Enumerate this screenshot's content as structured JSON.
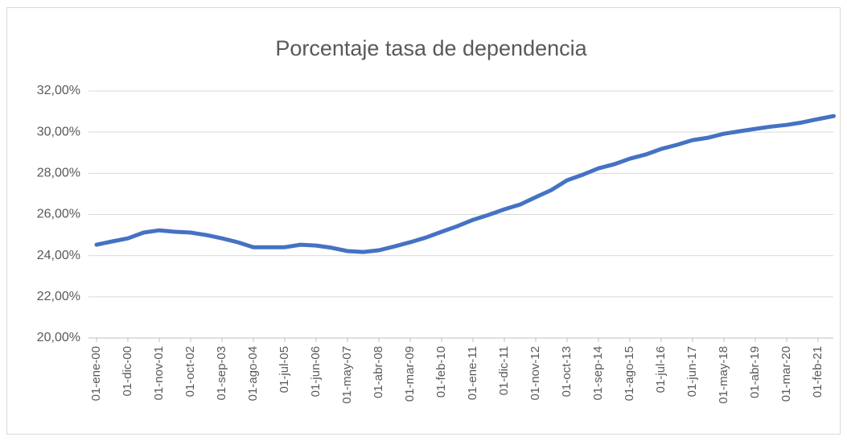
{
  "chart_data": {
    "type": "line",
    "title": "Porcentaje tasa de dependencia",
    "categories": [
      "01-ene-00",
      null,
      "01-dic-00",
      null,
      "01-nov-01",
      null,
      "01-oct-02",
      null,
      "01-sep-03",
      null,
      "01-ago-04",
      null,
      "01-jul-05",
      null,
      "01-jun-06",
      null,
      "01-may-07",
      null,
      "01-abr-08",
      null,
      "01-mar-09",
      null,
      "01-feb-10",
      null,
      "01-ene-11",
      null,
      "01-dic-11",
      null,
      "01-nov-12",
      null,
      "01-oct-13",
      null,
      "01-sep-14",
      null,
      "01-ago-15",
      null,
      "01-jul-16",
      null,
      "01-jun-17",
      null,
      "01-may-18",
      null,
      "01-abr-19",
      null,
      "01-mar-20",
      null,
      "01-feb-21",
      null
    ],
    "values": [
      24.53,
      24.69,
      24.84,
      25.12,
      25.23,
      25.16,
      25.12,
      25.0,
      24.84,
      24.65,
      24.41,
      24.41,
      24.41,
      24.53,
      24.49,
      24.38,
      24.22,
      24.18,
      24.26,
      24.45,
      24.65,
      24.88,
      25.16,
      25.43,
      25.74,
      25.98,
      26.25,
      26.48,
      26.84,
      27.19,
      27.66,
      27.93,
      28.24,
      28.44,
      28.71,
      28.91,
      29.18,
      29.38,
      29.61,
      29.73,
      29.92,
      30.04,
      30.16,
      30.27,
      30.35,
      30.47,
      30.63,
      30.78
    ],
    "color": "#4472c4",
    "ylim": [
      20,
      32
    ],
    "yticks": [
      {
        "value": 20,
        "label": "20,00%"
      },
      {
        "value": 22,
        "label": "22,00%"
      },
      {
        "value": 24,
        "label": "24,00%"
      },
      {
        "value": 26,
        "label": "26,00%"
      },
      {
        "value": 28,
        "label": "28,00%"
      },
      {
        "value": 30,
        "label": "30,00%"
      },
      {
        "value": 32,
        "label": "32,00%"
      }
    ],
    "grid": true
  }
}
